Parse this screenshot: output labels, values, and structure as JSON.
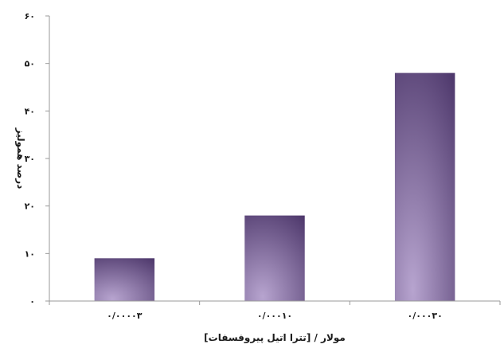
{
  "chart_data": {
    "type": "bar",
    "categories": [
      "۰/۰۰۰۰۳",
      "۰/۰۰۰۱۰",
      "۰/۰۰۰۳۰"
    ],
    "values": [
      9,
      18,
      48
    ],
    "ylim": [
      0,
      60
    ],
    "yticks": [
      0,
      10,
      20,
      30,
      40,
      50,
      60
    ],
    "ytick_labels": [
      "۰",
      "۱۰",
      "۲۰",
      "۳۰",
      "۴۰",
      "۵۰",
      "۶۰"
    ],
    "xlabel": "[تترا اتیل پیروفسفات] / مولار",
    "ylabel": "درصد همولیز",
    "grid": false,
    "colors": {
      "bar_light": "#b7a4cf",
      "bar_dark": "#4a3468",
      "axis": "#9a9a9a",
      "text": "#1a1a1a"
    }
  }
}
